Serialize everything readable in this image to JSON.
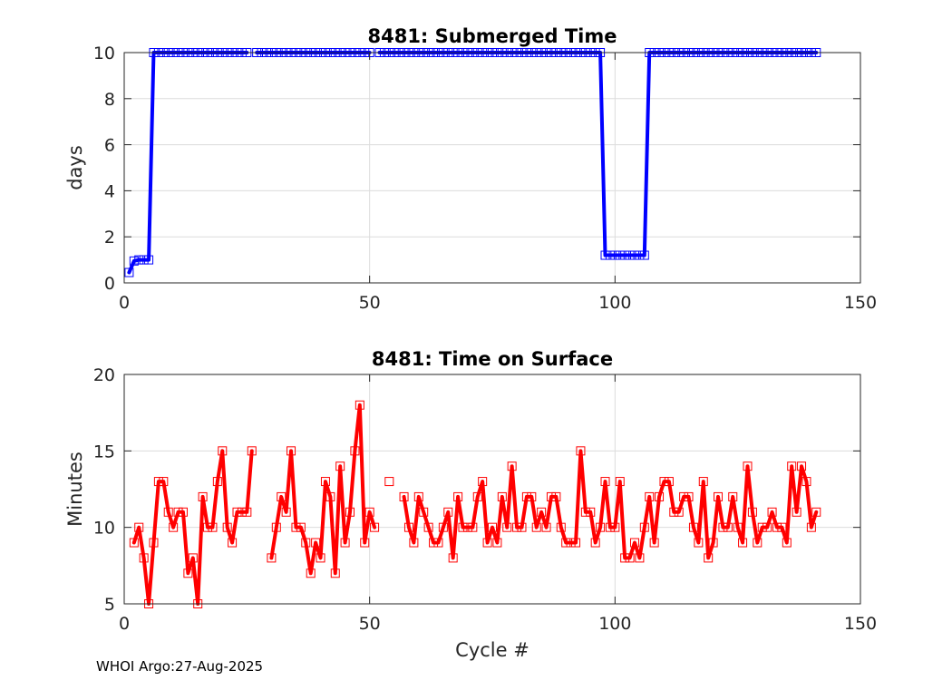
{
  "footer": "WHOI Argo:27-Aug-2025",
  "chart_data": [
    {
      "type": "line",
      "title": "8481: Submerged Time",
      "xlabel": "",
      "ylabel": "days",
      "xlim": [
        0,
        150
      ],
      "ylim": [
        0,
        10
      ],
      "xticks": [
        0,
        50,
        100,
        150
      ],
      "yticks": [
        0,
        2,
        4,
        6,
        8,
        10
      ],
      "grid": true,
      "color": "#0000ff",
      "marker": "square",
      "series": [
        {
          "name": "Submerged Time",
          "x": [
            1,
            2,
            3,
            4,
            5,
            6,
            7,
            8,
            9,
            10,
            11,
            12,
            13,
            14,
            15,
            16,
            17,
            18,
            19,
            20,
            21,
            22,
            23,
            24,
            25,
            26,
            27,
            28,
            29,
            30,
            31,
            32,
            33,
            34,
            35,
            36,
            37,
            38,
            39,
            40,
            41,
            42,
            43,
            44,
            45,
            46,
            47,
            48,
            49,
            50,
            51,
            52,
            53,
            54,
            55,
            56,
            57,
            58,
            59,
            60,
            61,
            62,
            63,
            64,
            65,
            66,
            67,
            68,
            69,
            70,
            71,
            72,
            73,
            74,
            75,
            76,
            77,
            78,
            79,
            80,
            81,
            82,
            83,
            84,
            85,
            86,
            87,
            88,
            89,
            90,
            91,
            92,
            93,
            94,
            95,
            96,
            97,
            98,
            99,
            100,
            101,
            102,
            103,
            104,
            105,
            106,
            107,
            108,
            109,
            110,
            111,
            112,
            113,
            114,
            115,
            116,
            117,
            118,
            119,
            120,
            121,
            122,
            123,
            124,
            125,
            126,
            127,
            128,
            129,
            130,
            131,
            132,
            133,
            134,
            135,
            136,
            137,
            138,
            139,
            140,
            141
          ],
          "y": [
            0.45,
            0.95,
            1.0,
            1.0,
            1.0,
            10,
            10,
            10,
            10,
            10,
            10,
            10,
            10,
            10,
            10,
            10,
            10,
            10,
            10,
            10,
            10,
            10,
            10,
            10,
            10,
            null,
            10,
            10,
            10,
            10,
            10,
            10,
            10,
            10,
            10,
            10,
            10,
            10,
            10,
            10,
            10,
            10,
            10,
            10,
            10,
            10,
            10,
            10,
            10,
            10,
            null,
            10,
            10,
            10,
            10,
            10,
            10,
            10,
            10,
            10,
            10,
            10,
            10,
            10,
            10,
            10,
            10,
            10,
            10,
            10,
            10,
            10,
            10,
            10,
            10,
            10,
            10,
            10,
            10,
            10,
            10,
            10,
            10,
            10,
            10,
            10,
            10,
            10,
            10,
            10,
            10,
            10,
            10,
            10,
            10,
            10,
            10,
            1.2,
            1.2,
            1.2,
            1.2,
            1.2,
            1.2,
            1.2,
            1.2,
            1.2,
            10,
            10,
            10,
            10,
            10,
            10,
            10,
            10,
            10,
            10,
            10,
            10,
            10,
            10,
            10,
            10,
            10,
            10,
            10,
            10,
            10,
            10,
            10,
            10,
            10,
            10,
            10,
            10,
            10,
            10,
            10,
            10,
            10,
            10,
            10
          ]
        }
      ]
    },
    {
      "type": "line",
      "title": "8481: Time on Surface",
      "xlabel": "Cycle #",
      "ylabel": "Minutes",
      "xlim": [
        0,
        150
      ],
      "ylim": [
        5,
        20
      ],
      "xticks": [
        0,
        50,
        100,
        150
      ],
      "yticks": [
        5,
        10,
        15,
        20
      ],
      "grid": true,
      "color": "#ff0000",
      "marker": "square",
      "series": [
        {
          "name": "Time on Surface",
          "x": [
            2,
            3,
            4,
            5,
            6,
            7,
            8,
            9,
            10,
            11,
            12,
            13,
            14,
            15,
            16,
            17,
            18,
            19,
            20,
            21,
            22,
            23,
            24,
            25,
            26,
            27,
            28,
            29,
            30,
            31,
            32,
            33,
            34,
            35,
            36,
            37,
            38,
            39,
            40,
            41,
            42,
            43,
            44,
            45,
            46,
            47,
            48,
            49,
            50,
            51,
            52,
            53,
            54,
            55,
            56,
            57,
            58,
            59,
            60,
            61,
            62,
            63,
            64,
            65,
            66,
            67,
            68,
            69,
            70,
            71,
            72,
            73,
            74,
            75,
            76,
            77,
            78,
            79,
            80,
            81,
            82,
            83,
            84,
            85,
            86,
            87,
            88,
            89,
            90,
            91,
            92,
            93,
            94,
            95,
            96,
            97,
            98,
            99,
            100,
            101,
            102,
            103,
            104,
            105,
            106,
            107,
            108,
            109,
            110,
            111,
            112,
            113,
            114,
            115,
            116,
            117,
            118,
            119,
            120,
            121,
            122,
            123,
            124,
            125,
            126,
            127,
            128,
            129,
            130,
            131,
            132,
            133,
            134,
            135,
            136,
            137,
            138,
            139,
            140,
            141
          ],
          "y": [
            9,
            10,
            8,
            5,
            9,
            13,
            13,
            11,
            10,
            11,
            11,
            7,
            8,
            5,
            12,
            10,
            10,
            13,
            15,
            10,
            9,
            11,
            11,
            11,
            15,
            null,
            null,
            null,
            8,
            10,
            12,
            11,
            15,
            10,
            10,
            9,
            7,
            9,
            8,
            13,
            12,
            7,
            14,
            9,
            11,
            15,
            18,
            9,
            11,
            10,
            null,
            null,
            13,
            null,
            null,
            12,
            10,
            9,
            12,
            11,
            10,
            9,
            9,
            10,
            11,
            8,
            12,
            10,
            10,
            10,
            12,
            13,
            9,
            10,
            9,
            12,
            10,
            14,
            10,
            10,
            12,
            12,
            10,
            11,
            10,
            12,
            12,
            10,
            9,
            9,
            9,
            15,
            11,
            11,
            9,
            10,
            13,
            10,
            10,
            13,
            8,
            8,
            9,
            8,
            10,
            12,
            9,
            12,
            13,
            13,
            11,
            11,
            12,
            12,
            10,
            9,
            13,
            8,
            9,
            12,
            10,
            10,
            12,
            10,
            9,
            14,
            11,
            9,
            10,
            10,
            11,
            10,
            10,
            9,
            14,
            11,
            14,
            13,
            10,
            11
          ]
        }
      ]
    }
  ]
}
